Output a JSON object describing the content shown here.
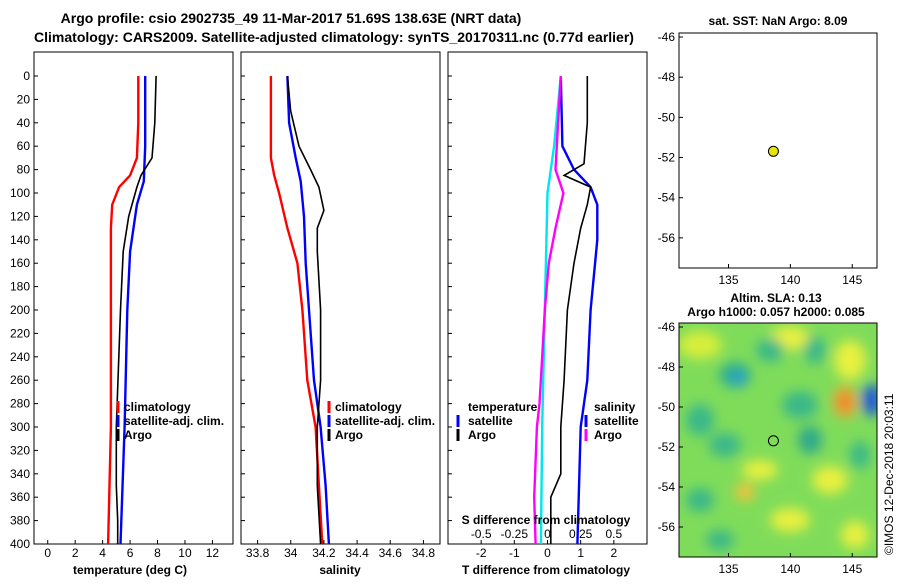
{
  "header": {
    "line1": "Argo profile: csio 2902735_49 11-Mar-2017 51.69S 138.63E (NRT data)",
    "line2": "Climatology: CARS2009. Satellite-adjusted climatology: synTS_20170311.nc (0.77d earlier)"
  },
  "colors": {
    "climatology": "#ff0000",
    "satellite": "#0000ff",
    "argo": "#000000",
    "cyan": "#00e5ee",
    "magenta": "#ff00ff",
    "dot": "#e6e600"
  },
  "chart_data": [
    {
      "id": "temperature",
      "type": "line",
      "xlabel": "temperature (deg C)",
      "ylabel": "depth",
      "xlim": [
        -1,
        13.5
      ],
      "ylim": [
        400,
        0
      ],
      "xticks": [
        "0",
        "2",
        "4",
        "6",
        "8",
        "10",
        "12"
      ],
      "yticks": [
        "0",
        "20",
        "40",
        "60",
        "80",
        "100",
        "120",
        "140",
        "160",
        "180",
        "200",
        "220",
        "240",
        "260",
        "280",
        "300",
        "320",
        "340",
        "360",
        "380",
        "400"
      ],
      "legend": [
        "climatology",
        "satellite-adj. clim.",
        "Argo"
      ],
      "series": [
        {
          "name": "climatology",
          "depth": [
            0,
            40,
            70,
            85,
            95,
            110,
            130,
            150,
            200,
            300,
            400
          ],
          "values": [
            6.6,
            6.6,
            6.5,
            6.0,
            5.2,
            4.7,
            4.6,
            4.6,
            4.6,
            4.6,
            4.4
          ]
        },
        {
          "name": "satellite-adj. clim.",
          "depth": [
            0,
            60,
            90,
            110,
            150,
            200,
            300,
            400
          ],
          "values": [
            7.1,
            7.1,
            7.0,
            6.5,
            6.0,
            5.8,
            5.6,
            5.3
          ]
        },
        {
          "name": "Argo",
          "depth": [
            0,
            40,
            70,
            85,
            95,
            120,
            150,
            200,
            300,
            350,
            380,
            400
          ],
          "values": [
            7.9,
            7.8,
            7.6,
            6.8,
            6.5,
            5.9,
            5.5,
            5.3,
            5.0,
            5.0,
            5.1,
            5.1
          ]
        }
      ]
    },
    {
      "id": "salinity",
      "type": "line",
      "xlabel": "salinity",
      "ylabel": "depth",
      "xlim": [
        33.7,
        34.9
      ],
      "ylim": [
        400,
        0
      ],
      "xticks": [
        "33.8",
        "34",
        "34.2",
        "34.4",
        "34.6",
        "34.8"
      ],
      "legend": [
        "climatology",
        "satellite-adj. clim.",
        "Argo"
      ],
      "series": [
        {
          "name": "climatology",
          "depth": [
            0,
            40,
            70,
            85,
            100,
            130,
            160,
            200,
            260,
            300,
            350,
            400
          ],
          "values": [
            33.88,
            33.88,
            33.88,
            33.9,
            33.93,
            33.98,
            34.04,
            34.07,
            34.1,
            34.15,
            34.17,
            34.19
          ]
        },
        {
          "name": "satellite-adj. clim.",
          "depth": [
            0,
            40,
            70,
            90,
            120,
            160,
            200,
            260,
            300,
            350,
            400
          ],
          "values": [
            33.98,
            33.99,
            34.03,
            34.06,
            34.08,
            34.09,
            34.11,
            34.14,
            34.18,
            34.21,
            34.23
          ]
        },
        {
          "name": "Argo",
          "depth": [
            0,
            30,
            60,
            80,
            95,
            115,
            130,
            150,
            200,
            260,
            300,
            350,
            400
          ],
          "values": [
            33.98,
            34.0,
            34.05,
            34.12,
            34.17,
            34.2,
            34.16,
            34.16,
            34.18,
            34.18,
            34.16,
            34.16,
            34.18
          ]
        }
      ]
    },
    {
      "id": "difference",
      "type": "line",
      "xlabel": "T difference from climatology",
      "x2label": "S difference from climatology",
      "xlim": [
        -3,
        3
      ],
      "ylim": [
        400,
        0
      ],
      "xticks": [
        "-2",
        "-1",
        "0",
        "1",
        "2"
      ],
      "x2ticks": [
        "-0.5",
        "-0.25",
        "0",
        "0.25",
        "0.5"
      ],
      "legend_temperature": [
        "temperature",
        "satellite",
        "Argo"
      ],
      "legend_salinity": [
        "salinity",
        "satellite",
        "Argo"
      ],
      "series": [
        {
          "name": "T satellite",
          "color": "blue",
          "depth": [
            0,
            60,
            80,
            95,
            110,
            140,
            200,
            260,
            300,
            400
          ],
          "values": [
            0.4,
            0.45,
            0.8,
            1.3,
            1.5,
            1.5,
            1.3,
            1.2,
            1.0,
            0.9
          ]
        },
        {
          "name": "T Argo",
          "color": "black",
          "depth": [
            0,
            40,
            75,
            85,
            95,
            110,
            130,
            160,
            200,
            260,
            300,
            340,
            360,
            400
          ],
          "values": [
            1.2,
            1.2,
            1.1,
            0.5,
            1.3,
            1.2,
            1.0,
            0.8,
            0.6,
            0.5,
            0.4,
            0.4,
            0.1,
            0.1
          ]
        },
        {
          "name": "S satellite",
          "color": "cyan",
          "depth": [
            0,
            60,
            100,
            200,
            300,
            400
          ],
          "values": [
            0.1,
            0.05,
            0.0,
            -0.02,
            -0.04,
            -0.05
          ]
        },
        {
          "name": "S Argo",
          "color": "magenta",
          "depth": [
            0,
            40,
            80,
            100,
            130,
            160,
            200,
            240,
            280,
            300,
            360,
            400
          ],
          "values": [
            0.1,
            0.08,
            0.06,
            0.12,
            0.06,
            0.01,
            -0.02,
            -0.04,
            -0.06,
            -0.08,
            -0.1,
            -0.09
          ]
        }
      ]
    },
    {
      "id": "sst-map",
      "type": "scatter",
      "title": "sat. SST: NaN Argo: 8.09",
      "xlim": [
        131,
        147
      ],
      "ylim": [
        -57.5,
        -45.8
      ],
      "xticks": [
        "135",
        "140",
        "145"
      ],
      "yticks": [
        "-46",
        "-48",
        "-50",
        "-52",
        "-54",
        "-56"
      ],
      "point": {
        "lon": 138.63,
        "lat": -51.69
      }
    },
    {
      "id": "sla-map",
      "type": "heatmap",
      "title1": "Altim. SLA: 0.13",
      "title2": "Argo h1000: 0.057 h2000: 0.085",
      "xlim": [
        131,
        147
      ],
      "ylim": [
        -57.5,
        -45.8
      ],
      "xticks": [
        "135",
        "140",
        "145"
      ],
      "yticks": [
        "-46",
        "-48",
        "-50",
        "-52",
        "-54",
        "-56"
      ],
      "point": {
        "lon": 138.63,
        "lat": -51.69
      }
    }
  ],
  "watermark": "©IMOS 12-Dec-2018 20:03:11"
}
